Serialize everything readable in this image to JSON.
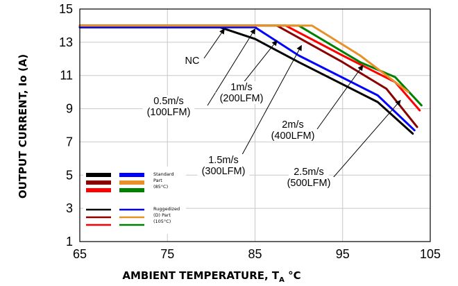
{
  "chart_data": {
    "type": "line",
    "title": "",
    "xlabel": {
      "main": "AMBIENT TEMPERATURE, T",
      "sub": "A",
      "unit": " °C"
    },
    "ylabel": "OUTPUT CURRENT, Io (A)",
    "xlim": [
      65,
      105
    ],
    "ylim": [
      1,
      15
    ],
    "xticks": [
      65,
      75,
      85,
      95,
      105
    ],
    "yticks": [
      1,
      3,
      5,
      7,
      9,
      11,
      13,
      15
    ],
    "grid": true,
    "series": [
      {
        "color": "#000000",
        "group": "ruggedized",
        "points": [
          [
            65,
            13.9
          ],
          [
            81,
            13.9
          ],
          [
            85,
            13.2
          ],
          [
            90,
            11.8
          ],
          [
            99,
            9.4
          ],
          [
            103,
            7.5
          ]
        ]
      },
      {
        "color": "#0000ff",
        "group": "ruggedized",
        "points": [
          [
            65,
            13.9
          ],
          [
            85,
            13.9
          ],
          [
            90,
            12.2
          ],
          [
            99,
            9.8
          ],
          [
            103.2,
            7.7
          ]
        ]
      },
      {
        "color": "#8b0000",
        "group": "ruggedized",
        "points": [
          [
            65,
            14.0
          ],
          [
            87.5,
            14.0
          ],
          [
            95,
            11.8
          ],
          [
            100,
            10.2
          ],
          [
            103.5,
            7.9
          ]
        ]
      },
      {
        "color": "#ff0000",
        "group": "ruggedized",
        "points": [
          [
            65,
            14.0
          ],
          [
            88.5,
            14.0
          ],
          [
            95,
            12.2
          ],
          [
            101,
            10.6
          ],
          [
            103.8,
            8.9
          ]
        ]
      },
      {
        "color": "#008000",
        "group": "ruggedized",
        "points": [
          [
            65,
            14.0
          ],
          [
            90,
            14.0
          ],
          [
            97,
            11.8
          ],
          [
            101,
            10.9
          ],
          [
            104,
            9.2
          ]
        ]
      },
      {
        "color": "#e8902a",
        "group": "ruggedized",
        "points": [
          [
            65,
            14.0
          ],
          [
            91.5,
            14.0
          ],
          [
            97,
            12.2
          ],
          [
            102.5,
            10.0
          ]
        ]
      }
    ],
    "annotations": [
      {
        "text": "NC",
        "target": [
          81.5,
          13.8
        ]
      },
      {
        "text": "0.5m/s",
        "text2": "(100LFM)",
        "target": [
          85,
          13.8
        ]
      },
      {
        "text": "1m/s",
        "text2": "(200LFM)",
        "target": [
          87.5,
          13.1
        ]
      },
      {
        "text": "1.5m/s",
        "text2": "(300LFM)",
        "target": [
          90.3,
          12.8
        ]
      },
      {
        "text": "2m/s",
        "text2": "(400LFM)",
        "target": [
          97.3,
          11.6
        ]
      },
      {
        "text": "2.5m/s",
        "text2": "(500LFM)",
        "target": [
          101.6,
          9.5
        ]
      }
    ],
    "legend": {
      "placement": "bottom-left",
      "groups": [
        {
          "label_lines": [
            "Standard",
            "Part",
            "(85°C)"
          ],
          "style": "thick",
          "rows": [
            [
              "#000000",
              "#0000ff"
            ],
            [
              "#8b0000",
              "#e8902a"
            ],
            [
              "#ff0000",
              "#008000"
            ]
          ]
        },
        {
          "label_lines": [
            "Ruggedized",
            "(D) Part",
            "(105°C)"
          ],
          "style": "thin",
          "rows": [
            [
              "#000000",
              "#0000ff"
            ],
            [
              "#8b0000",
              "#e8902a"
            ],
            [
              "#ff0000",
              "#008000"
            ]
          ]
        }
      ]
    }
  }
}
